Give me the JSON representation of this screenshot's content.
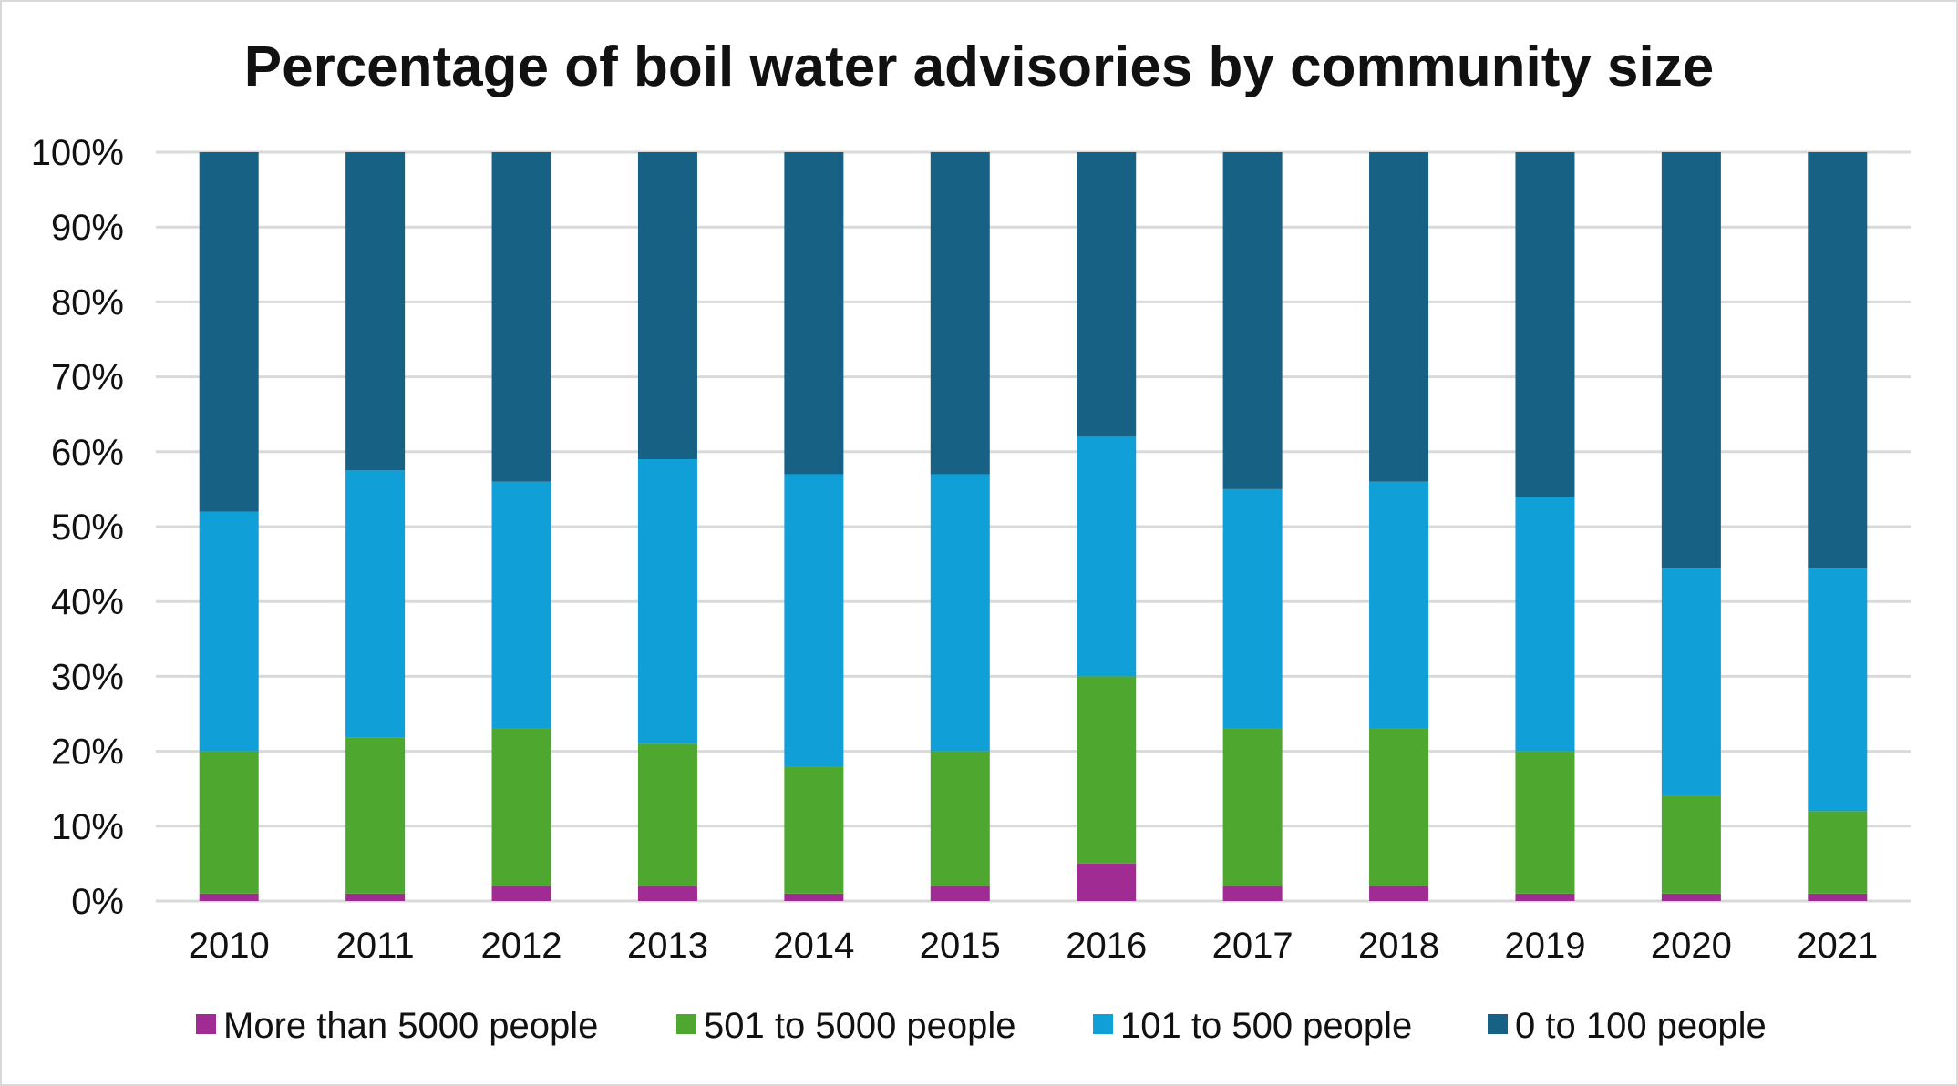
{
  "chart_data": {
    "type": "bar",
    "stacked": true,
    "title": "Percentage of boil water advisories by community size",
    "xlabel": "",
    "ylabel": "",
    "ylim": [
      0,
      100
    ],
    "y_ticks": [
      "0%",
      "10%",
      "20%",
      "30%",
      "40%",
      "50%",
      "60%",
      "70%",
      "80%",
      "90%",
      "100%"
    ],
    "grid": true,
    "legend_position": "bottom",
    "categories": [
      "2010",
      "2011",
      "2012",
      "2013",
      "2014",
      "2015",
      "2016",
      "2017",
      "2018",
      "2019",
      "2020",
      "2021"
    ],
    "series": [
      {
        "name": "More than 5000 people",
        "color": "#a02b93",
        "values": [
          1,
          1,
          2,
          2,
          1,
          2,
          5,
          2,
          2,
          1,
          1,
          1
        ]
      },
      {
        "name": "501 to 5000 people",
        "color": "#4ea72e",
        "values": [
          19,
          20.8,
          21,
          19,
          17,
          18,
          25,
          21,
          21,
          19,
          13,
          11
        ]
      },
      {
        "name": "101 to 500 people",
        "color": "#119fd7",
        "values": [
          32,
          35.7,
          33,
          38,
          39,
          37,
          32,
          32,
          33,
          34,
          30.5,
          32.5
        ]
      },
      {
        "name": "0 to 100 people",
        "color": "#176184",
        "values": [
          48,
          42.5,
          44,
          41,
          43,
          43,
          38,
          45,
          44,
          46,
          55.5,
          55.5
        ]
      }
    ]
  }
}
